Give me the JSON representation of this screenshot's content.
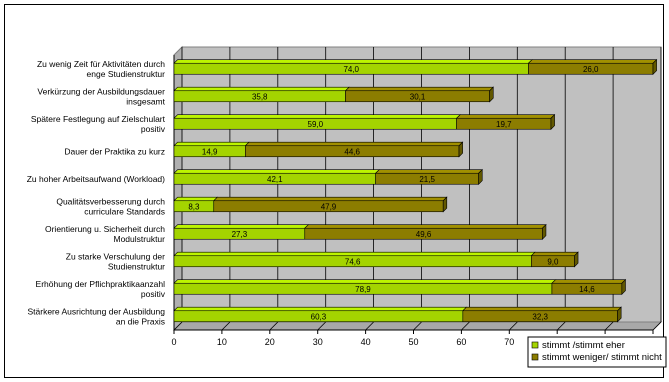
{
  "chart_data": {
    "type": "bar",
    "orientation": "horizontal",
    "stacked": true,
    "style": "3d",
    "categories": [
      [
        "Zu wenig Zeit für Aktivitäten durch",
        "enge Studienstruktur"
      ],
      [
        "Verkürzung der Ausbildungsdauer",
        "insgesamt"
      ],
      [
        "Spätere Festlegung auf Zielschulart",
        "positiv"
      ],
      [
        "Dauer der Praktika zu kurz"
      ],
      [
        "Zu hoher Arbeitsaufwand (Workload)"
      ],
      [
        "Qualitätsverbesserung durch",
        "curriculare Standards"
      ],
      [
        "Orientierung u. Sicherheit durch",
        "Modulstruktur"
      ],
      [
        "Zu starke Verschulung der",
        "Studienstruktur"
      ],
      [
        "Erhöhung der Pflichpraktikaanzahl",
        "positiv"
      ],
      [
        "Stärkere Ausrichtung der Ausbildung",
        "an die Praxis"
      ]
    ],
    "series": [
      {
        "name": "stimmt /stimmt eher",
        "color": "#a4d400",
        "values": [
          74.0,
          35.8,
          59.0,
          14.9,
          42.1,
          8.3,
          27.3,
          74.6,
          78.9,
          60.3
        ],
        "labels": [
          "74,0",
          "35,8",
          "59,0",
          "14,9",
          "42,1",
          "8,3",
          "27,3",
          "74,6",
          "78,9",
          "60,3"
        ]
      },
      {
        "name": "stimmt weniger/ stimmt nicht",
        "color": "#8c7d00",
        "values": [
          26.0,
          30.1,
          19.7,
          44.6,
          21.5,
          47.9,
          49.6,
          9.0,
          14.6,
          32.3
        ],
        "labels": [
          "26,0",
          "30,1",
          "19,7",
          "44,6",
          "21,5",
          "47,9",
          "49,6",
          "9,0",
          "14,6",
          "32,3"
        ]
      }
    ],
    "x_ticks": [
      "0",
      "10",
      "20",
      "30",
      "40",
      "50",
      "60",
      "70",
      "80",
      "90",
      "100"
    ],
    "xlim": [
      0,
      100
    ],
    "grid": true,
    "legend_position": "bottom-right"
  }
}
